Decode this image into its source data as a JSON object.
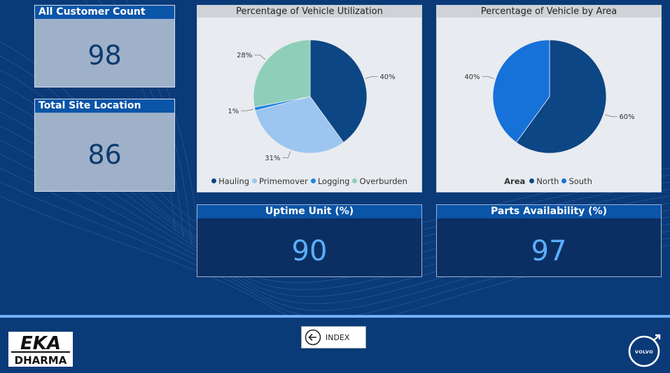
{
  "kpis": {
    "customer": {
      "title": "All Customer Count",
      "value": "98"
    },
    "site": {
      "title": "Total Site Location",
      "value": "86"
    }
  },
  "utilization": {
    "title": "Percentage of Vehicle Utilization"
  },
  "area": {
    "title": "Percentage of Vehicle by Area",
    "legend_title": "Area"
  },
  "uptime": {
    "title": "Uptime Unit (%)",
    "value": "90"
  },
  "parts": {
    "title": "Parts Availability (%)",
    "value": "97"
  },
  "footer": {
    "index_label": "INDEX",
    "logo_left": {
      "line1": "EKA",
      "line2": "DHARMA"
    },
    "logo_right": "VOLVO"
  },
  "colors": {
    "hauling": "#0d4684",
    "primemover": "#9cc5ef",
    "logging": "#1f86e6",
    "overburden": "#8fceb9",
    "north": "#0d4684",
    "south": "#1671d8"
  },
  "chart_data": [
    {
      "type": "pie",
      "title": "Percentage of Vehicle Utilization",
      "categories": [
        "Hauling",
        "Primemover",
        "Logging",
        "Overburden"
      ],
      "values": [
        40,
        31,
        1,
        28
      ],
      "labels": [
        "40%",
        "31%",
        "1%",
        "28%"
      ],
      "legend_placement": "bottom"
    },
    {
      "type": "pie",
      "title": "Percentage of Vehicle by Area",
      "legend_title": "Area",
      "categories": [
        "North",
        "South"
      ],
      "values": [
        60,
        40
      ],
      "labels": [
        "60%",
        "40%"
      ],
      "legend_placement": "bottom"
    }
  ]
}
